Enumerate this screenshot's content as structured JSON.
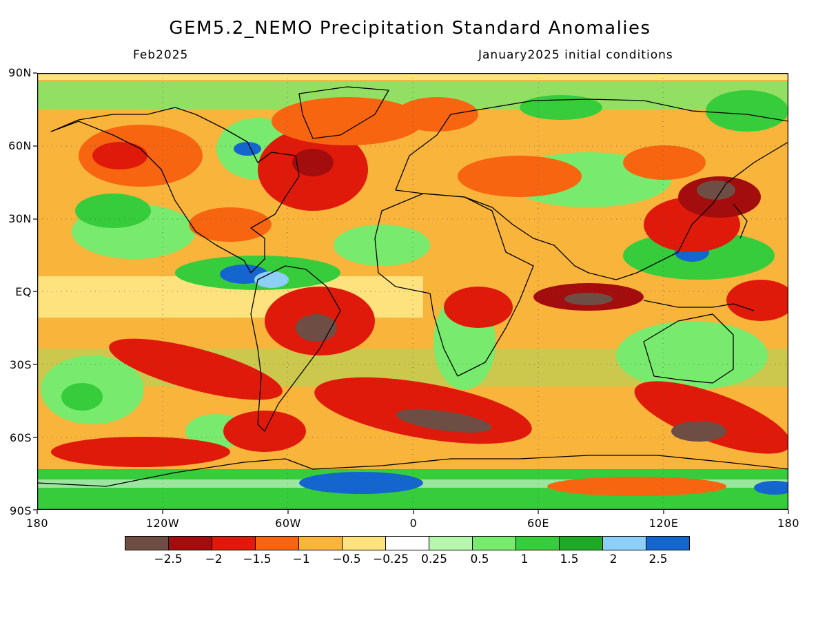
{
  "header": {
    "title": "GEM5.2_NEMO Precipitation Standard Anomalies",
    "valid_month": "Feb2025",
    "init_conditions": "January2025 initial conditions"
  },
  "lat_labels": [
    "90N",
    "60N",
    "30N",
    "EQ",
    "30S",
    "60S",
    "90S"
  ],
  "lon_labels": [
    "180",
    "120W",
    "60W",
    "0",
    "60E",
    "120E",
    "180"
  ],
  "legend": {
    "colors": [
      "#6e4e44",
      "#a30d0d",
      "#df1a0b",
      "#f76511",
      "#f9b43c",
      "#fde27d",
      "#ffffff",
      "#b6f6ad",
      "#78ea6d",
      "#36cc3c",
      "#20a827",
      "#8ecff8",
      "#1565cf"
    ],
    "labels": [
      "−2.5",
      "−2",
      "−1.5",
      "−1",
      "−0.5",
      "−0.25",
      "0.25",
      "0.5",
      "1",
      "1.5",
      "2",
      "2.5"
    ]
  }
}
